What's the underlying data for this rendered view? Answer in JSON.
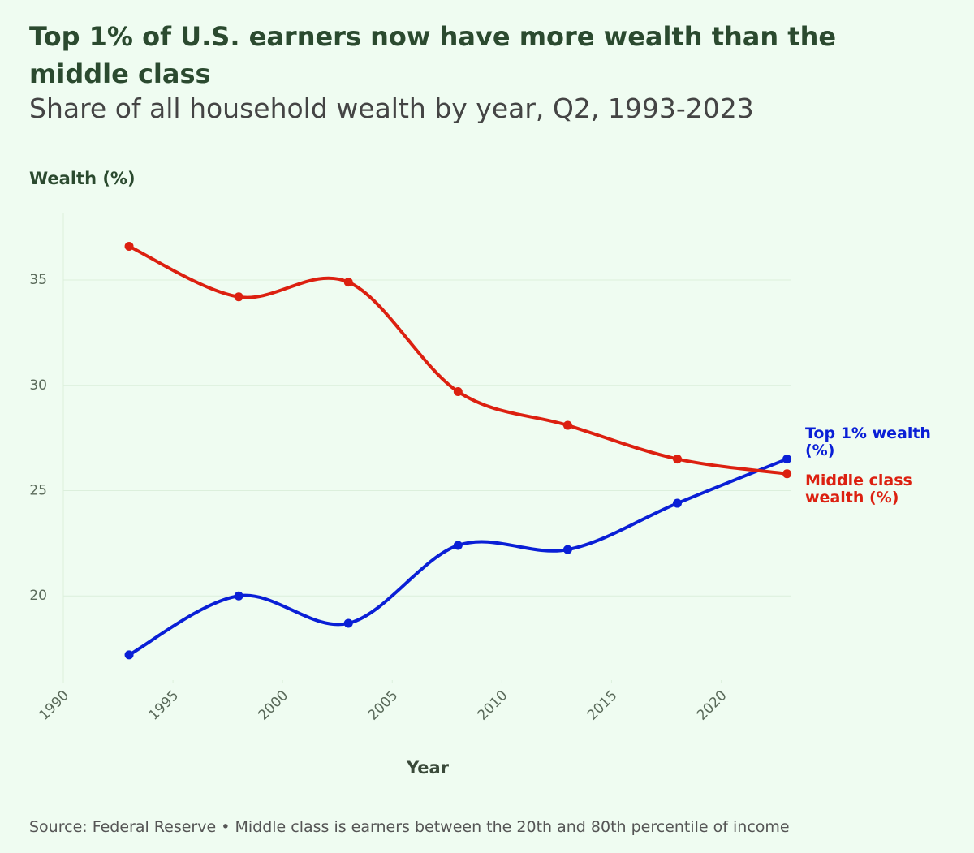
{
  "chart_data": {
    "type": "line",
    "title": "Top 1% of U.S. earners now have more wealth than the middle class",
    "subtitle": "Share of all household wealth by year, Q2, 1993-2023",
    "y_label": "Wealth (%)",
    "x_label": "Year",
    "source": "Source: Federal Reserve • Middle class is earners between the 20th and 80th percentile of income",
    "x": [
      1993,
      1998,
      2003,
      2008,
      2013,
      2018,
      2023
    ],
    "series": [
      {
        "name": "Top 1% wealth (%)",
        "color": "#0a1fd6",
        "values": [
          17.2,
          20.0,
          18.7,
          22.4,
          22.2,
          24.4,
          26.5
        ]
      },
      {
        "name": "Middle class wealth (%)",
        "color": "#dc2010",
        "values": [
          36.6,
          34.2,
          34.9,
          29.7,
          28.1,
          26.5,
          25.8
        ]
      }
    ],
    "xlim": [
      1990,
      2023.2
    ],
    "xticks": [
      1990,
      1995,
      2000,
      2005,
      2010,
      2015,
      2020
    ],
    "ylim": [
      16,
      38.2
    ],
    "yticks": [
      20,
      25,
      30,
      35
    ],
    "grid": true
  }
}
